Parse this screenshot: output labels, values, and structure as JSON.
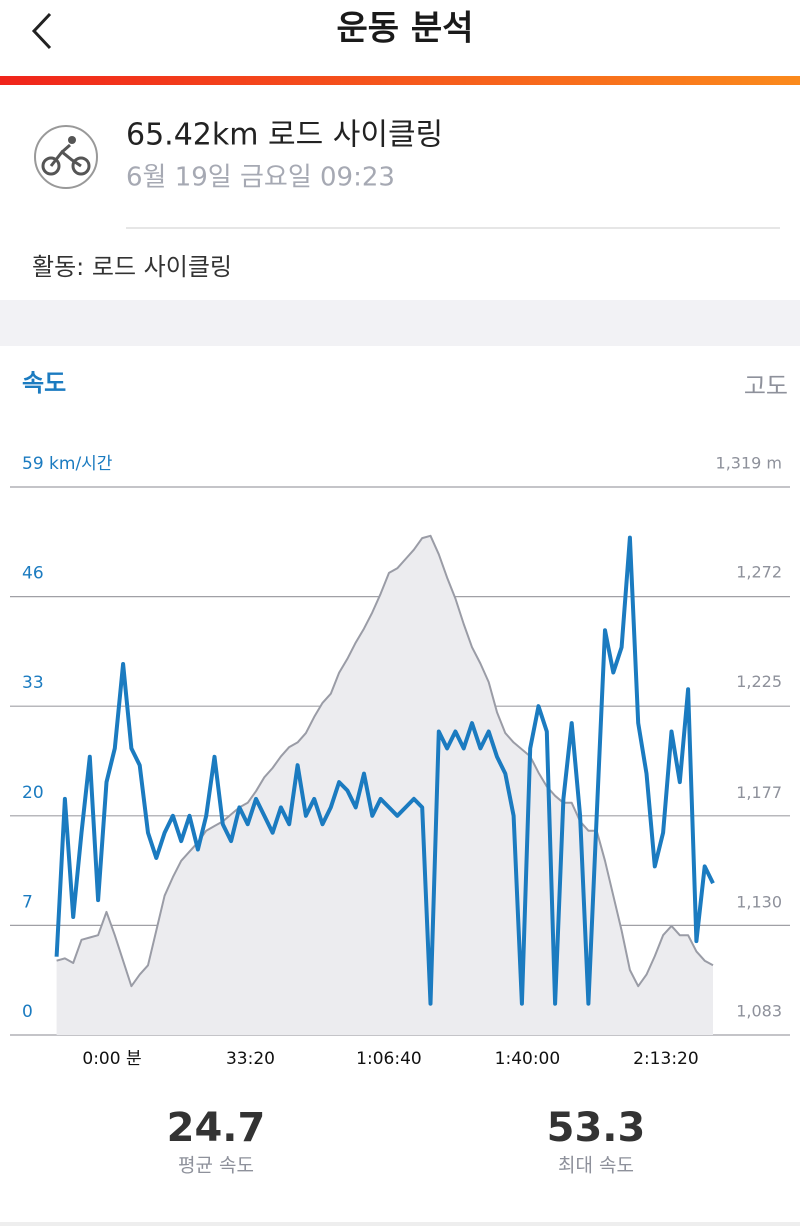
{
  "header": {
    "title": "운동 분석"
  },
  "activity": {
    "title": "65.42km 로드 사이클링",
    "date": "6월 19일 금요일 09:23",
    "type": "활동: 로드 사이클링"
  },
  "chart_data": {
    "type": "line",
    "x": [
      -800,
      -680,
      -560,
      -440,
      -320,
      -200,
      -80,
      40,
      160,
      280,
      400,
      520,
      640,
      760,
      880,
      1000,
      1120,
      1240,
      1360,
      1480,
      1600,
      1720,
      1840,
      1960,
      2080,
      2200,
      2320,
      2440,
      2560,
      2680,
      2800,
      2920,
      3040,
      3160,
      3280,
      3400,
      3520,
      3640,
      3760,
      3880,
      4000,
      4120,
      4240,
      4360,
      4480,
      4600,
      4720,
      4840,
      4960,
      5080,
      5200,
      5320,
      5440,
      5560,
      5680,
      5800,
      5920,
      6040,
      6160,
      6280,
      6400,
      6520,
      6640,
      6760,
      6880,
      7000,
      7120,
      7240,
      7360,
      7480,
      7600,
      7720,
      7840,
      7960,
      8080,
      8200,
      8320,
      8440,
      8560,
      8680
    ],
    "xlim": [
      -800,
      8680
    ],
    "xticks": [
      {
        "value": 0,
        "label": "0:00 분"
      },
      {
        "value": 2000,
        "label": "33:20"
      },
      {
        "value": 4000,
        "label": "1:06:40"
      },
      {
        "value": 6000,
        "label": "1:40:00"
      },
      {
        "value": 8000,
        "label": "2:13:20"
      }
    ],
    "ylim": [
      0,
      59
    ],
    "yticks": [
      {
        "value": 59,
        "label": "59 km/시간"
      },
      46,
      33,
      20,
      7,
      0
    ],
    "y2lim": [
      1083,
      1319
    ],
    "y2ticks": [
      {
        "value": 1319,
        "label": "1,319 m"
      },
      {
        "value": 1272,
        "label": "1,272"
      },
      {
        "value": 1225,
        "label": "1,225"
      },
      {
        "value": 1177,
        "label": "1,177"
      },
      {
        "value": 1130,
        "label": "1,130"
      },
      {
        "value": 1083,
        "label": "1,083"
      }
    ],
    "grid": true,
    "series": [
      {
        "name": "속도",
        "color": "#1b7bc0",
        "values": [
          5,
          22,
          8,
          18,
          27,
          10,
          24,
          28,
          38,
          28,
          26,
          18,
          15,
          18,
          20,
          17,
          20,
          16,
          20,
          27,
          19,
          17,
          21,
          19,
          22,
          20,
          18,
          21,
          19,
          26,
          20,
          22,
          19,
          21,
          24,
          23,
          21,
          25,
          20,
          22,
          21,
          20,
          21,
          22,
          21,
          2,
          30,
          28,
          30,
          28,
          31,
          28,
          30,
          27,
          25,
          20,
          2,
          28,
          33,
          30,
          2,
          22,
          31,
          20,
          2,
          20,
          42,
          37,
          40,
          53,
          31,
          25,
          14,
          18,
          30,
          24,
          35,
          6,
          14,
          12
        ]
      },
      {
        "name": "고도",
        "color": "#9a9ca6",
        "axis": "y2",
        "values": [
          1115,
          1116,
          1114,
          1124,
          1125,
          1126,
          1136,
          1126,
          1115,
          1104,
          1109,
          1113,
          1128,
          1143,
          1151,
          1158,
          1162,
          1166,
          1171,
          1173,
          1175,
          1178,
          1181,
          1183,
          1188,
          1194,
          1198,
          1203,
          1207,
          1209,
          1213,
          1220,
          1226,
          1230,
          1239,
          1245,
          1252,
          1258,
          1265,
          1273,
          1282,
          1284,
          1288,
          1292,
          1297,
          1298,
          1290,
          1280,
          1271,
          1260,
          1250,
          1243,
          1235,
          1222,
          1213,
          1209,
          1206,
          1203,
          1196,
          1190,
          1186,
          1183,
          1183,
          1175,
          1171,
          1171,
          1158,
          1143,
          1128,
          1111,
          1104,
          1109,
          1117,
          1126,
          1130,
          1126,
          1126,
          1119,
          1115,
          1113
        ]
      }
    ]
  },
  "stats": [
    {
      "value": "24.7",
      "label": "평균 속도"
    },
    {
      "value": "53.3",
      "label": "최대 속도"
    }
  ]
}
